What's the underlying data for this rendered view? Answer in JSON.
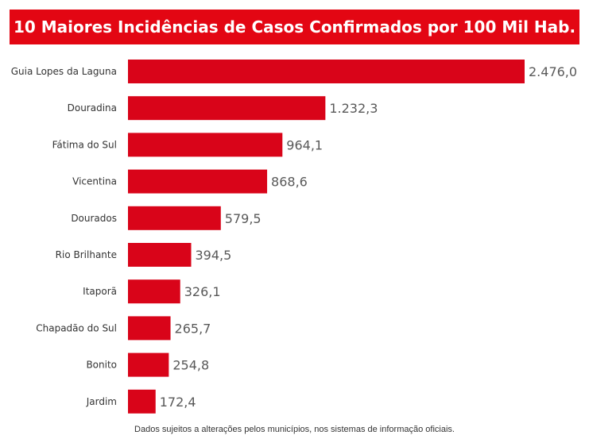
{
  "colors": {
    "accent": "#e30613",
    "bar": "#d90419",
    "label_text": "#333333",
    "value_text": "#595959"
  },
  "chart_data": {
    "type": "bar",
    "orientation": "horizontal",
    "title": "10 Maiores Incidências de Casos Confirmados por 100 Mil Hab.",
    "categories": [
      "Guia Lopes da Laguna",
      "Douradina",
      "Fátima do Sul",
      "Vicentina",
      "Dourados",
      "Rio Brilhante",
      "Itaporã",
      "Chapadão do Sul",
      "Bonito",
      "Jardim"
    ],
    "values": [
      2476.0,
      1232.3,
      964.1,
      868.6,
      579.5,
      394.5,
      326.1,
      265.7,
      254.8,
      172.4
    ],
    "value_labels": [
      "2.476,0",
      "1.232,3",
      "964,1",
      "868,6",
      "579,5",
      "394,5",
      "326,1",
      "265,7",
      "254,8",
      "172,4"
    ],
    "xlim": [
      0,
      2476.0
    ],
    "grid": false,
    "legend": "none"
  },
  "footnote": "Dados sujeitos a alterações pelos municípios, nos sistemas de informação oficiais."
}
